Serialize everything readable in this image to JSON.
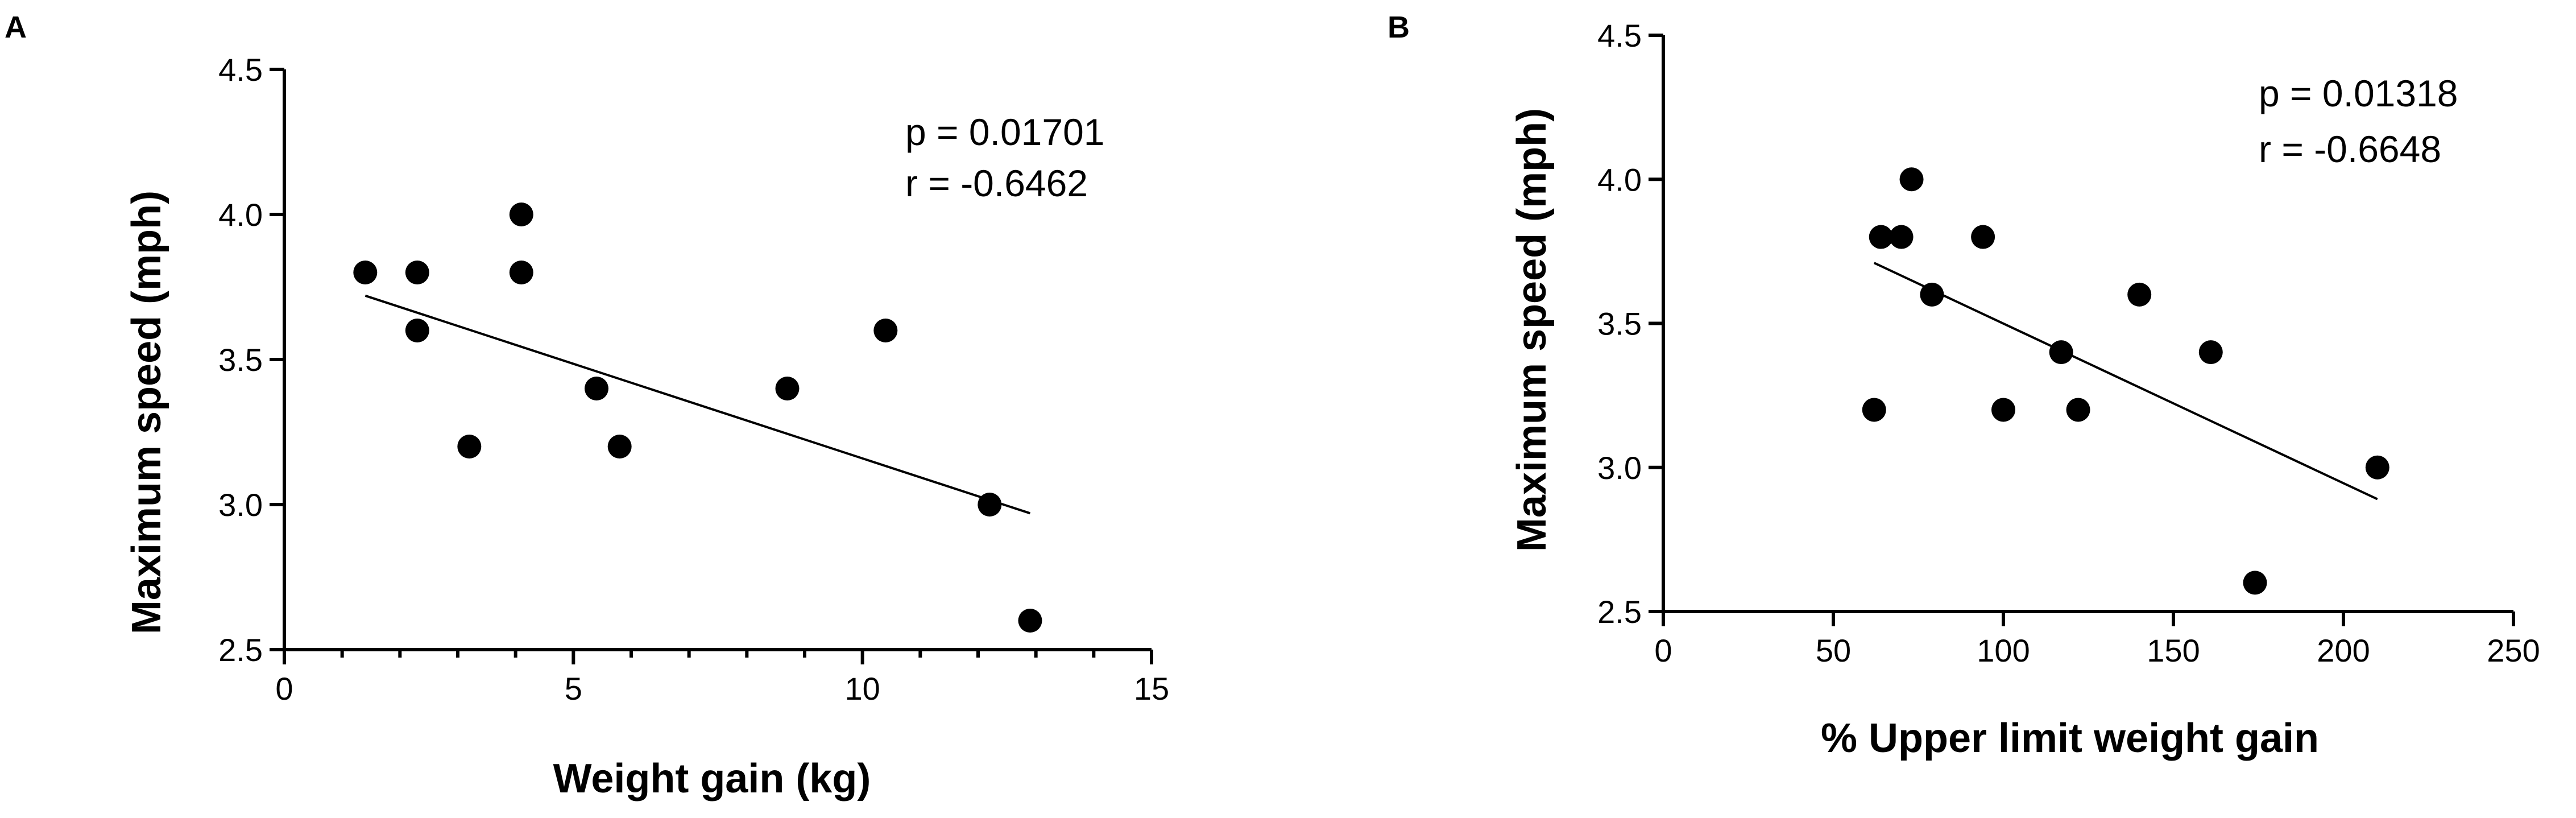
{
  "chart_data": [
    {
      "panel": "A",
      "type": "scatter",
      "xlabel": "Weight gain (kg)",
      "ylabel": "Maximum speed (mph)",
      "xlim": [
        0,
        15
      ],
      "ylim": [
        2.5,
        4.5
      ],
      "xticks": [
        "0",
        "5",
        "10",
        "15"
      ],
      "yticks": [
        "2.5",
        "3.0",
        "3.5",
        "4.0",
        "4.5"
      ],
      "x_minor_ticks": [
        1,
        2,
        3,
        4,
        6,
        7,
        8,
        9,
        11,
        12,
        13,
        14
      ],
      "annotations": [
        "p = 0.01701",
        "r = -0.6462"
      ],
      "points": [
        {
          "x": 1.4,
          "y": 3.8
        },
        {
          "x": 2.3,
          "y": 3.8
        },
        {
          "x": 2.3,
          "y": 3.6
        },
        {
          "x": 3.2,
          "y": 3.2
        },
        {
          "x": 4.1,
          "y": 4.0
        },
        {
          "x": 4.1,
          "y": 3.8
        },
        {
          "x": 5.4,
          "y": 3.4
        },
        {
          "x": 5.8,
          "y": 3.2
        },
        {
          "x": 8.7,
          "y": 3.4
        },
        {
          "x": 10.4,
          "y": 3.6
        },
        {
          "x": 12.2,
          "y": 3.0
        },
        {
          "x": 12.9,
          "y": 2.6
        }
      ],
      "fit_line": {
        "x": [
          1.4,
          12.9
        ],
        "y": [
          3.72,
          2.97
        ]
      }
    },
    {
      "panel": "B",
      "type": "scatter",
      "xlabel": "% Upper limit weight gain",
      "ylabel": "Maximum speed (mph)",
      "xlim": [
        0,
        250
      ],
      "ylim": [
        2.5,
        4.5
      ],
      "xticks": [
        "0",
        "50",
        "100",
        "150",
        "200",
        "250"
      ],
      "yticks": [
        "2.5",
        "3.0",
        "3.5",
        "4.0",
        "4.5"
      ],
      "annotations": [
        "p = 0.01318",
        "r = -0.6648"
      ],
      "points": [
        {
          "x": 62,
          "y": 3.2
        },
        {
          "x": 64,
          "y": 3.8
        },
        {
          "x": 70,
          "y": 3.8
        },
        {
          "x": 73,
          "y": 4.0
        },
        {
          "x": 79,
          "y": 3.6
        },
        {
          "x": 94,
          "y": 3.8
        },
        {
          "x": 100,
          "y": 3.2
        },
        {
          "x": 117,
          "y": 3.4
        },
        {
          "x": 122,
          "y": 3.2
        },
        {
          "x": 140,
          "y": 3.6
        },
        {
          "x": 161,
          "y": 3.4
        },
        {
          "x": 174,
          "y": 2.6
        },
        {
          "x": 210,
          "y": 3.0
        }
      ],
      "fit_line": {
        "x": [
          62,
          210
        ],
        "y": [
          3.71,
          2.89
        ]
      }
    }
  ]
}
